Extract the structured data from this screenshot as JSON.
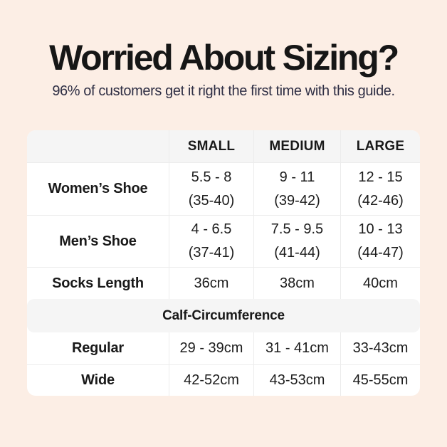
{
  "colors": {
    "page_background": "#fceee5",
    "table_background": "#ffffff",
    "header_row_background": "#f5f5f5",
    "section_band_background": "#f5f5f5",
    "cell_border": "#ececec",
    "title_text": "#161616",
    "subtitle_text": "#2e2e44",
    "table_text": "#1c1c1c"
  },
  "header": {
    "title": "Worried About Sizing?",
    "subtitle": "96% of customers get it right the first time with this guide."
  },
  "table": {
    "column_headers": {
      "blank": "",
      "small": "SMALL",
      "medium": "MEDIUM",
      "large": "LARGE"
    },
    "rows": {
      "womens_shoe": {
        "label": "Women’s Shoe",
        "small_us": "5.5 - 8",
        "small_eu": "(35-40)",
        "medium_us": "9 - 11",
        "medium_eu": "(39-42)",
        "large_us": "12 - 15",
        "large_eu": "(42-46)"
      },
      "mens_shoe": {
        "label": "Men’s Shoe",
        "small_us": "4 - 6.5",
        "small_eu": "(37-41)",
        "medium_us": "7.5 - 9.5",
        "medium_eu": "(41-44)",
        "large_us": "10 - 13",
        "large_eu": "(44-47)"
      },
      "socks_length": {
        "label": "Socks Length",
        "small": "36cm",
        "medium": "38cm",
        "large": "40cm"
      },
      "calf_section": {
        "label": "Calf-Circumference"
      },
      "regular": {
        "label": "Regular",
        "small": "29 - 39cm",
        "medium": "31 - 41cm",
        "large": "33-43cm"
      },
      "wide": {
        "label": "Wide",
        "small": "42-52cm",
        "medium": "43-53cm",
        "large": "45-55cm"
      }
    }
  }
}
